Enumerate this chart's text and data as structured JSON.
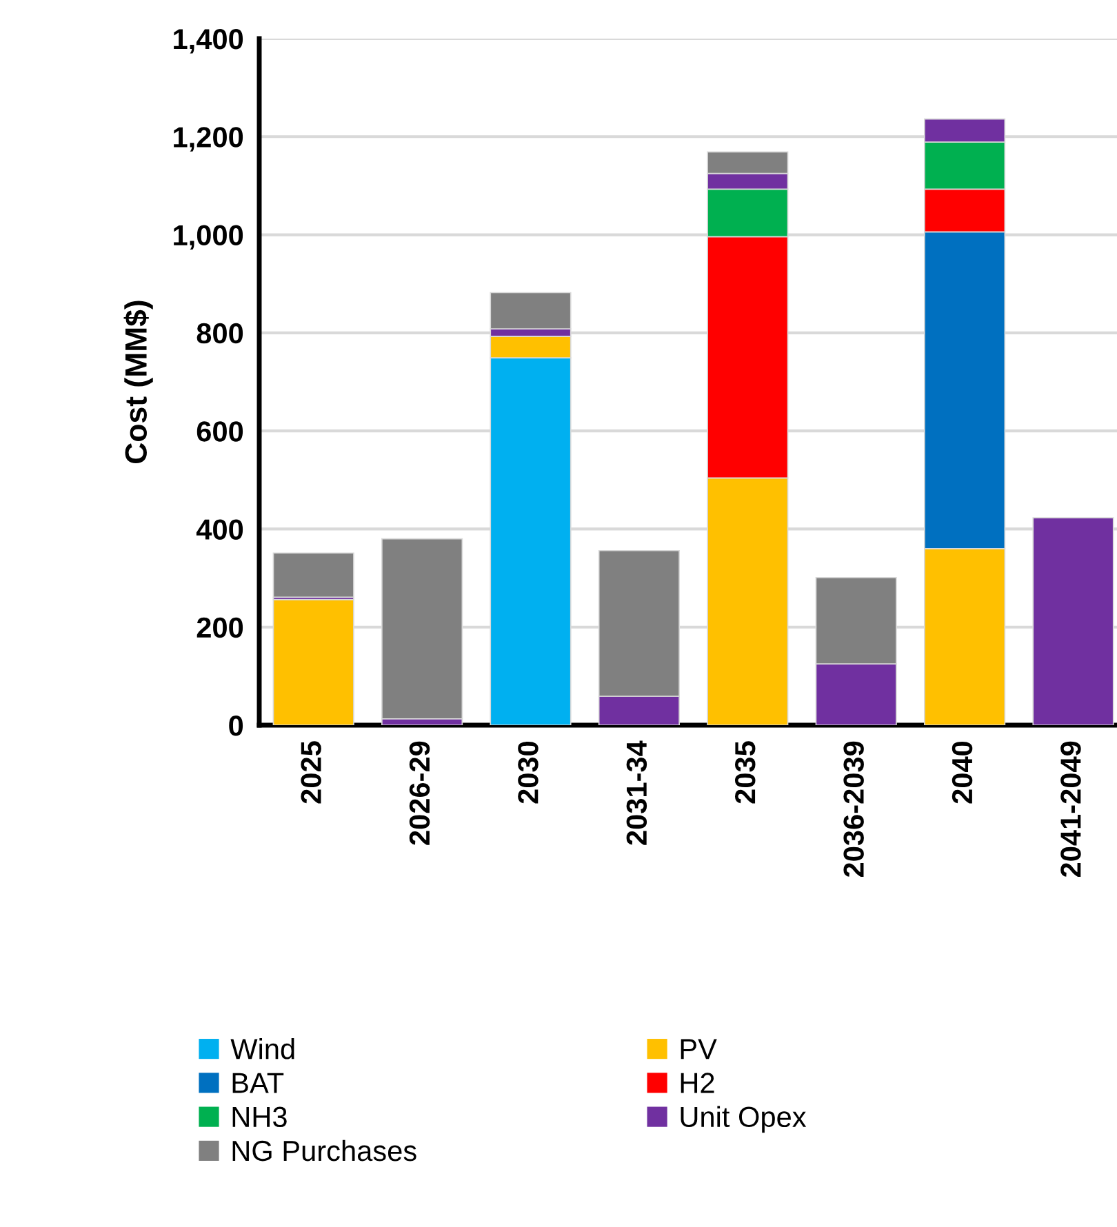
{
  "chart_data": {
    "type": "bar",
    "stacked": true,
    "ylabel": "Cost (MM$)",
    "categories": [
      "2025",
      "2026-29",
      "2030",
      "2031-34",
      "2035",
      "2036-2039",
      "2040",
      "2041-2049"
    ],
    "series": [
      {
        "name": "Wind",
        "color": "#00b0f0",
        "values": [
          null,
          null,
          749,
          null,
          null,
          null,
          null,
          null
        ]
      },
      {
        "name": "PV",
        "color": "#ffc000",
        "values": [
          256,
          null,
          44,
          null,
          504,
          null,
          360,
          null
        ]
      },
      {
        "name": "BAT",
        "color": "#0070c0",
        "values": [
          null,
          null,
          null,
          null,
          null,
          null,
          646,
          null
        ]
      },
      {
        "name": "H2",
        "color": "#ff0000",
        "values": [
          null,
          null,
          null,
          null,
          492,
          null,
          87,
          null
        ]
      },
      {
        "name": "NH3",
        "color": "#00b050",
        "values": [
          null,
          null,
          null,
          null,
          97,
          null,
          96,
          null
        ]
      },
      {
        "name": "Unit Opex",
        "color": "#7030a0",
        "values": [
          5,
          13,
          15,
          59,
          32,
          125,
          47,
          423
        ]
      },
      {
        "name": "NG Purchases",
        "color": "#808080",
        "values": [
          90,
          367,
          74,
          297,
          44,
          176,
          null,
          null
        ]
      }
    ],
    "ylim": [
      0,
      1400
    ],
    "yticks": [
      0,
      200,
      400,
      600,
      800,
      {
        "value": 1000,
        "label": "1,000"
      },
      {
        "value": 1200,
        "label": "1,200"
      },
      {
        "value": 1400,
        "label": "1,400"
      }
    ],
    "grid": "y",
    "legend": "bottom"
  }
}
